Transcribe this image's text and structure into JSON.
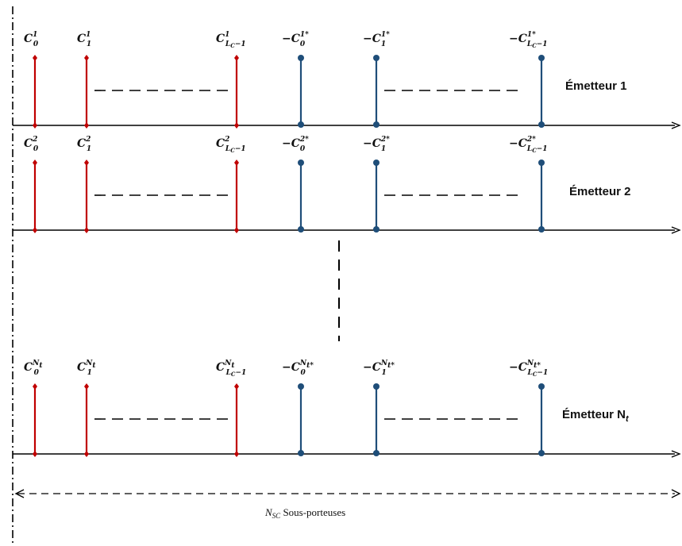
{
  "rows": [
    {
      "emitter_text": "Émetteur 1",
      "emitter_sub": "",
      "labels": {
        "c0": {
          "base": "C",
          "sub": "0",
          "sup": "1",
          "neg": ""
        },
        "c1": {
          "base": "C",
          "sub": "1",
          "sup": "1",
          "neg": ""
        },
        "cl": {
          "base": "C",
          "sub": "L",
          "subsub": "C",
          "subrest": "−1",
          "sup": "1",
          "neg": ""
        },
        "n0": {
          "base": "C",
          "sub": "0",
          "sup": "1*",
          "neg": "−"
        },
        "n1": {
          "base": "C",
          "sub": "1",
          "sup": "1*",
          "neg": "−"
        },
        "nl": {
          "base": "C",
          "sub": "L",
          "subsub": "C",
          "subrest": "−1",
          "sup": "1*",
          "neg": "−"
        }
      }
    },
    {
      "emitter_text": "Émetteur 2",
      "emitter_sub": "",
      "labels": {
        "c0": {
          "base": "C",
          "sub": "0",
          "sup": "2",
          "neg": ""
        },
        "c1": {
          "base": "C",
          "sub": "1",
          "sup": "2",
          "neg": ""
        },
        "cl": {
          "base": "C",
          "sub": "L",
          "subsub": "C",
          "subrest": "−1",
          "sup": "2",
          "neg": ""
        },
        "n0": {
          "base": "C",
          "sub": "0",
          "sup": "2*",
          "neg": "−"
        },
        "n1": {
          "base": "C",
          "sub": "1",
          "sup": "2*",
          "neg": "−"
        },
        "nl": {
          "base": "C",
          "sub": "L",
          "subsub": "C",
          "subrest": "−1",
          "sup": "2*",
          "neg": "−"
        }
      }
    },
    {
      "emitter_text": "Émetteur N",
      "emitter_sub": "t",
      "labels": {
        "c0": {
          "base": "C",
          "sub": "0",
          "sup": "N",
          "supsub": "t",
          "neg": ""
        },
        "c1": {
          "base": "C",
          "sub": "1",
          "sup": "N",
          "supsub": "t",
          "neg": ""
        },
        "cl": {
          "base": "C",
          "sub": "L",
          "subsub": "C",
          "subrest": "−1",
          "sup": "N",
          "supsub": "t",
          "neg": ""
        },
        "n0": {
          "base": "C",
          "sub": "0",
          "sup": "N",
          "supsub": "t*",
          "neg": "−"
        },
        "n1": {
          "base": "C",
          "sub": "1",
          "sup": "N",
          "supsub": "t*",
          "neg": "−"
        },
        "nl": {
          "base": "C",
          "sub": "L",
          "subsub": "C",
          "subrest": "−1",
          "sup": "N",
          "supsub": "t*",
          "neg": "−"
        }
      }
    }
  ],
  "caption": {
    "n": "N",
    "sub": "SC",
    "text": " Sous-porteuses"
  },
  "colors": {
    "red": "#c00000",
    "blue": "#1f4e79",
    "black": "#000000"
  }
}
